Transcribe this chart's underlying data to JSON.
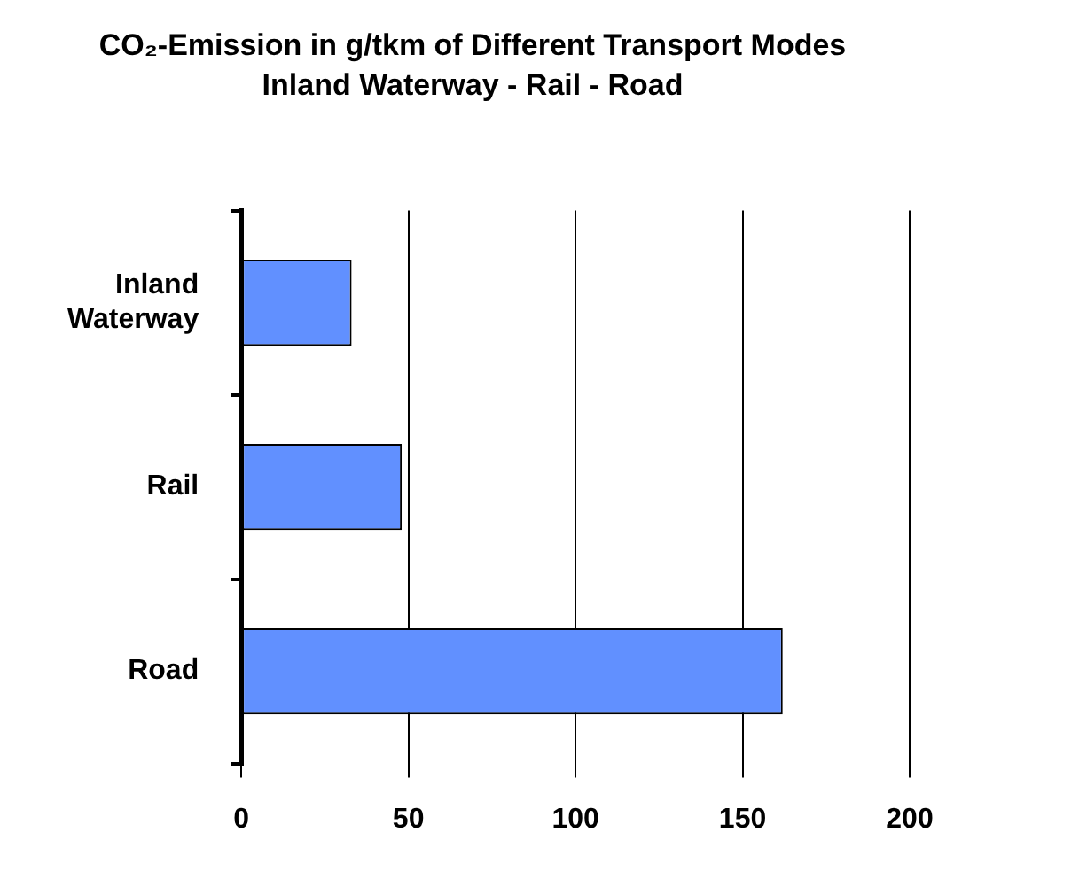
{
  "chart_data": {
    "type": "bar",
    "orientation": "horizontal",
    "title": "CO₂-Emission in g/tkm of Different Transport Modes",
    "subtitle": "Inland Waterway - Rail - Road",
    "categories": [
      "Inland Waterway",
      "Rail",
      "Road"
    ],
    "values": [
      33,
      48,
      162
    ],
    "color": "#6190ff",
    "xlim": [
      0,
      200
    ],
    "xticks": [
      0,
      50,
      100,
      150,
      200
    ],
    "grid": "x",
    "legend": false
  }
}
